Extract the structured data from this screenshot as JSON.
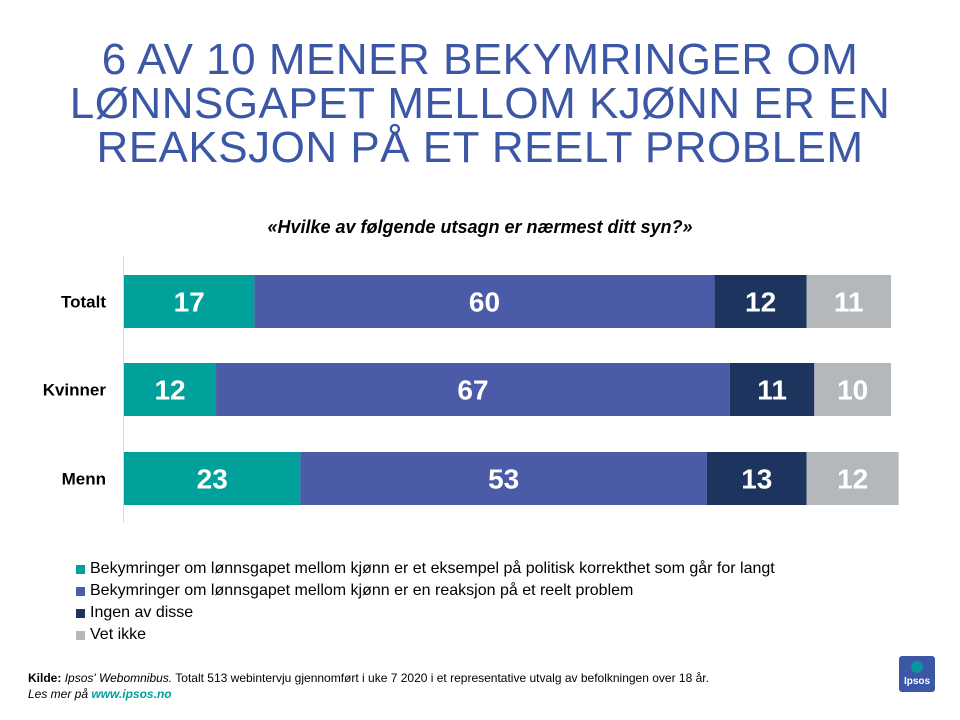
{
  "title_lines": [
    "6 AV 10 MENER BEKYMRINGER OM",
    "LØNNSGAPET MELLOM KJØNN ER EN",
    "REAKSJON PÅ ET REELT PROBLEM"
  ],
  "question": "«Hvilke av følgende utsagn er nærmest ditt syn?»",
  "colors": {
    "title": "#3b57a6",
    "series": [
      "#00a09b",
      "#4b5ba8",
      "#1d355e",
      "#b5b8bb"
    ],
    "data_label": "#ffffff"
  },
  "chart_data": {
    "type": "bar",
    "orientation": "horizontal",
    "stacked": true,
    "categories": [
      "Totalt",
      "Kvinner",
      "Menn"
    ],
    "series": [
      {
        "name": "Bekymringer om lønnsgapet mellom kjønn er et eksempel på politisk korrekthet som går for langt",
        "values": [
          17,
          12,
          23
        ]
      },
      {
        "name": "Bekymringer om lønnsgapet mellom kjønn er en reaksjon på et reelt problem",
        "values": [
          60,
          67,
          53
        ]
      },
      {
        "name": "Ingen av disse",
        "values": [
          12,
          11,
          13
        ]
      },
      {
        "name": "Vet ikke",
        "values": [
          11,
          10,
          12
        ]
      }
    ],
    "xlim": [
      0,
      100
    ],
    "legend_position": "bottom"
  },
  "legend": [
    "Bekymringer om lønnsgapet mellom kjønn er et eksempel på politisk korrekthet som går for langt",
    "Bekymringer om lønnsgapet mellom kjønn er en reaksjon på et reelt problem",
    "Ingen av disse",
    "Vet ikke"
  ],
  "source": {
    "label": "Kilde:",
    "publication": "Ipsos' Webomnibus.",
    "text": "Totalt 513 webintervju gjennomført i uke 7 2020 i et representative utvalg av befolkningen over 18 år.",
    "more_prefix": "Les mer på",
    "url": "www.ipsos.no"
  },
  "logo": {
    "text": "Ipsos"
  }
}
